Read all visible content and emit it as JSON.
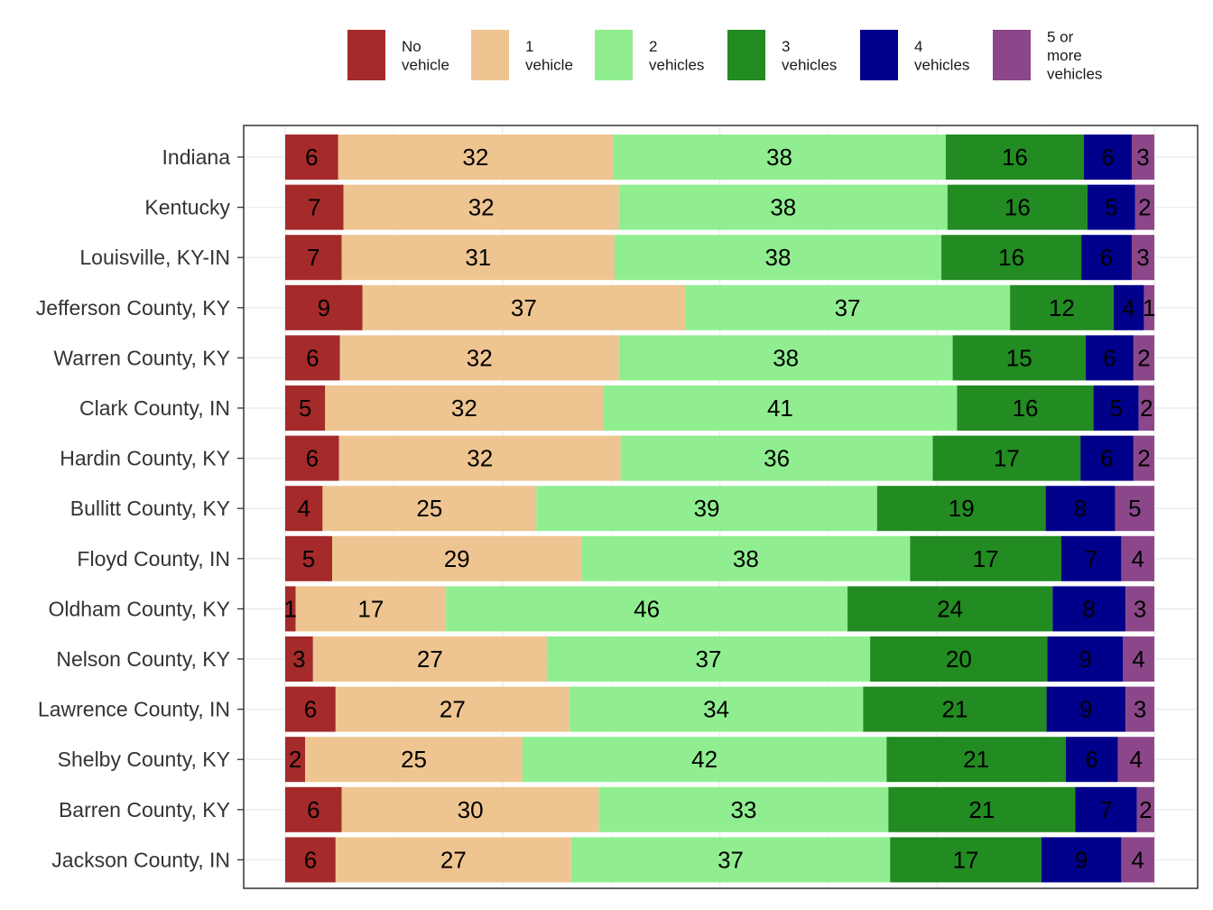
{
  "chart_data": {
    "type": "bar",
    "orientation": "horizontal",
    "stacked": true,
    "percent_scale": true,
    "grid": true,
    "legend_position": "top",
    "categories": [
      "Indiana",
      "Kentucky",
      "Louisville, KY-IN",
      "Jefferson County, KY",
      "Warren County, KY",
      "Clark County, IN",
      "Hardin County, KY",
      "Bullitt County, KY",
      "Floyd County, IN",
      "Oldham County, KY",
      "Nelson County, KY",
      "Lawrence County, IN",
      "Shelby County, KY",
      "Barren County, KY",
      "Jackson County, IN"
    ],
    "series": [
      {
        "name": [
          "No",
          "vehicle"
        ],
        "color": "#a52a2a",
        "values": [
          6.1,
          6.7,
          6.5,
          8.9,
          6.3,
          4.6,
          6.2,
          4.3,
          5.4,
          1.2,
          3.2,
          5.8,
          2.3,
          6.5,
          5.8
        ],
        "labels": [
          "6",
          "7",
          "7",
          "9",
          "6",
          "5",
          "6",
          "4",
          "5",
          "1",
          "3",
          "6",
          "2",
          "6",
          "6"
        ]
      },
      {
        "name": [
          "1",
          "vehicle"
        ],
        "color": "#eec591",
        "values": [
          31.6,
          31.7,
          31.4,
          37.1,
          32.1,
          32.0,
          32.4,
          24.6,
          28.7,
          17.3,
          26.9,
          26.9,
          25.0,
          29.6,
          27.1
        ],
        "labels": [
          "32",
          "32",
          "31",
          "37",
          "32",
          "32",
          "32",
          "25",
          "29",
          "17",
          "27",
          "27",
          "25",
          "30",
          "27"
        ]
      },
      {
        "name": [
          "2",
          "vehicles"
        ],
        "color": "#90ee90",
        "values": [
          38.3,
          37.8,
          37.6,
          37.4,
          38.4,
          40.7,
          35.9,
          39.2,
          37.8,
          46.2,
          37.2,
          33.8,
          41.9,
          33.3,
          36.7
        ],
        "labels": [
          "38",
          "38",
          "38",
          "37",
          "38",
          "41",
          "36",
          "39",
          "38",
          "46",
          "37",
          "34",
          "42",
          "33",
          "37"
        ]
      },
      {
        "name": [
          "3",
          "vehicles"
        ],
        "color": "#228b22",
        "values": [
          15.9,
          16.1,
          16.1,
          11.9,
          15.3,
          15.7,
          17.0,
          19.4,
          17.4,
          23.6,
          20.4,
          21.1,
          20.6,
          21.5,
          17.4
        ],
        "labels": [
          "16",
          "16",
          "16",
          "12",
          "15",
          "16",
          "17",
          "19",
          "17",
          "24",
          "20",
          "21",
          "21",
          "21",
          "17"
        ]
      },
      {
        "name": [
          "4",
          "vehicles"
        ],
        "color": "#00008b",
        "values": [
          5.5,
          5.5,
          5.8,
          3.5,
          5.5,
          5.2,
          6.1,
          8.0,
          6.9,
          8.4,
          8.7,
          9.1,
          6.0,
          7.1,
          9.2
        ],
        "labels": [
          "6",
          "5",
          "6",
          "4",
          "6",
          "5",
          "6",
          "8",
          "7",
          "8",
          "9",
          "9",
          "6",
          "7",
          "9"
        ]
      },
      {
        "name": [
          "5 or",
          "more",
          "vehicles"
        ],
        "color": "#8b4789",
        "values": [
          2.6,
          2.2,
          2.6,
          1.2,
          2.4,
          1.8,
          2.4,
          4.5,
          3.8,
          3.3,
          3.6,
          3.3,
          4.2,
          2.0,
          3.8
        ],
        "labels": [
          "3",
          "2",
          "3",
          "1",
          "2",
          "2",
          "2",
          "5",
          "4",
          "3",
          "4",
          "3",
          "4",
          "2",
          "4"
        ]
      }
    ],
    "xlim": [
      0,
      100
    ],
    "xlabel": "",
    "ylabel": "",
    "title": ""
  }
}
